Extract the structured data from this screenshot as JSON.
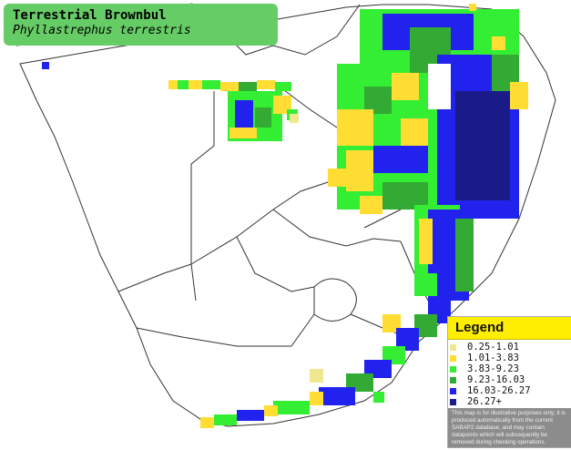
{
  "title": {
    "common_name": "Terrestrial Brownbul",
    "scientific_name": "Phyllastrephus terrestris"
  },
  "legend": {
    "title": "Legend",
    "items": [
      {
        "label": "0.25-1.01",
        "color": "#f0e890"
      },
      {
        "label": "1.01-3.83",
        "color": "#ffdd33"
      },
      {
        "label": "3.83-9.23",
        "color": "#33ee33"
      },
      {
        "label": "9.23-16.03",
        "color": "#33aa33"
      },
      {
        "label": "16.03-26.27",
        "color": "#2222ee"
      },
      {
        "label": "26.27+",
        "color": "#1a1a88"
      }
    ],
    "note": "This map is for illustrative purposes only; it is produced automatically from the current SABAP2 database, and may contain datapoints which will subsequently be removed during checking operations."
  },
  "colors": {
    "title_bg": "#66cc66",
    "legend_header_bg": "#ffee00",
    "border_line": "#333333"
  }
}
